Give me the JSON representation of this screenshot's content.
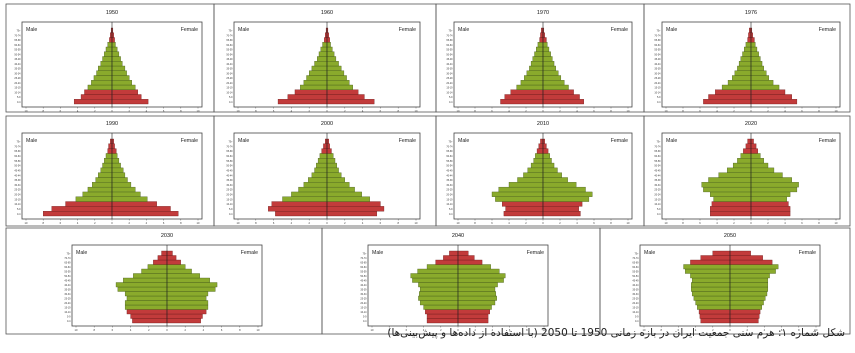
{
  "colors": {
    "young": "#c23b3b",
    "young_edge": "#6b1a1a",
    "mid": "#8aaa2c",
    "mid_edge": "#41561a",
    "old": "#c23b3b",
    "old_edge": "#6b1a1a",
    "panel_border": "#444444",
    "cell_border": "#555555"
  },
  "labels": {
    "male": "Male",
    "female": "Female"
  },
  "caption": "شکل شماره ۱: هرم سنی جمعیت ایران در بازه زمانی 1950 تا 2050 (با استفاده از داده‌ها و پیش‌بینی‌ها)",
  "chart_data": [
    {
      "type": "bar",
      "orientation": "horizontal",
      "title": "1950",
      "series": [
        {
          "name": "Male",
          "values": [
            4.4,
            3.6,
            3.2,
            2.8,
            2.4,
            2.1,
            1.8,
            1.6,
            1.3,
            1.1,
            0.9,
            0.7,
            0.5,
            0.3,
            0.2,
            0.1
          ]
        },
        {
          "name": "Female",
          "values": [
            4.2,
            3.4,
            3.0,
            2.7,
            2.3,
            2.0,
            1.7,
            1.5,
            1.2,
            1.0,
            0.8,
            0.6,
            0.4,
            0.3,
            0.2,
            0.1
          ]
        }
      ],
      "xlim": [
        -10,
        10
      ]
    },
    {
      "type": "bar",
      "orientation": "horizontal",
      "title": "1960",
      "series": [
        {
          "name": "Male",
          "values": [
            5.5,
            4.4,
            3.6,
            3.0,
            2.6,
            2.3,
            2.0,
            1.7,
            1.4,
            1.1,
            0.9,
            0.7,
            0.5,
            0.3,
            0.2,
            0.1
          ]
        },
        {
          "name": "Female",
          "values": [
            5.3,
            4.2,
            3.5,
            2.9,
            2.5,
            2.2,
            1.9,
            1.6,
            1.3,
            1.0,
            0.8,
            0.6,
            0.4,
            0.3,
            0.2,
            0.1
          ]
        }
      ],
      "xlim": [
        -10,
        10
      ]
    },
    {
      "type": "bar",
      "orientation": "horizontal",
      "title": "1970",
      "series": [
        {
          "name": "Male",
          "values": [
            5.0,
            4.5,
            3.8,
            3.1,
            2.6,
            2.2,
            1.9,
            1.6,
            1.4,
            1.2,
            1.0,
            0.8,
            0.6,
            0.4,
            0.3,
            0.2
          ]
        },
        {
          "name": "Female",
          "values": [
            4.8,
            4.3,
            3.6,
            3.0,
            2.5,
            2.1,
            1.8,
            1.5,
            1.3,
            1.1,
            0.9,
            0.7,
            0.5,
            0.4,
            0.2,
            0.1
          ]
        }
      ],
      "xlim": [
        -10,
        10
      ]
    },
    {
      "type": "bar",
      "orientation": "horizontal",
      "title": "1976",
      "series": [
        {
          "name": "Male",
          "values": [
            5.6,
            5.0,
            4.2,
            3.4,
            2.7,
            2.2,
            1.9,
            1.6,
            1.4,
            1.2,
            1.0,
            0.8,
            0.6,
            0.4,
            0.3,
            0.2
          ]
        },
        {
          "name": "Female",
          "values": [
            5.4,
            4.8,
            4.0,
            3.3,
            2.6,
            2.1,
            1.8,
            1.5,
            1.3,
            1.1,
            0.9,
            0.7,
            0.5,
            0.4,
            0.2,
            0.1
          ]
        }
      ],
      "xlim": [
        -10,
        10
      ]
    },
    {
      "type": "bar",
      "orientation": "horizontal",
      "title": "1990",
      "series": [
        {
          "name": "Male",
          "values": [
            8.0,
            7.0,
            5.4,
            4.2,
            3.4,
            2.8,
            2.3,
            1.9,
            1.6,
            1.3,
            1.1,
            0.9,
            0.7,
            0.5,
            0.4,
            0.2
          ]
        },
        {
          "name": "Female",
          "values": [
            7.7,
            6.8,
            5.2,
            4.1,
            3.3,
            2.7,
            2.2,
            1.8,
            1.5,
            1.3,
            1.0,
            0.8,
            0.6,
            0.5,
            0.3,
            0.2
          ]
        }
      ],
      "xlim": [
        -10,
        10
      ]
    },
    {
      "type": "bar",
      "orientation": "horizontal",
      "title": "2000",
      "series": [
        {
          "name": "Male",
          "values": [
            5.8,
            6.6,
            6.2,
            5.0,
            4.0,
            3.2,
            2.6,
            2.1,
            1.7,
            1.4,
            1.2,
            1.0,
            0.8,
            0.6,
            0.4,
            0.2
          ]
        },
        {
          "name": "Female",
          "values": [
            5.6,
            6.4,
            6.0,
            4.8,
            3.9,
            3.1,
            2.5,
            2.0,
            1.6,
            1.3,
            1.1,
            0.9,
            0.7,
            0.5,
            0.3,
            0.2
          ]
        }
      ],
      "xlim": [
        -10,
        10
      ]
    },
    {
      "type": "bar",
      "orientation": "horizontal",
      "title": "2010",
      "series": [
        {
          "name": "Male",
          "values": [
            4.6,
            4.4,
            4.8,
            5.6,
            6.0,
            5.2,
            4.0,
            3.0,
            2.3,
            1.8,
            1.4,
            1.1,
            0.9,
            0.7,
            0.5,
            0.3
          ]
        },
        {
          "name": "Female",
          "values": [
            4.4,
            4.2,
            4.6,
            5.4,
            5.8,
            5.0,
            3.9,
            2.9,
            2.2,
            1.7,
            1.3,
            1.0,
            0.8,
            0.6,
            0.4,
            0.2
          ]
        }
      ],
      "xlim": [
        -10,
        10
      ]
    },
    {
      "type": "bar",
      "orientation": "horizontal",
      "title": "2020",
      "series": [
        {
          "name": "Male",
          "values": [
            4.8,
            4.8,
            4.6,
            4.4,
            4.8,
            5.6,
            5.8,
            5.0,
            3.8,
            2.8,
            2.1,
            1.6,
            1.2,
            0.9,
            0.6,
            0.4
          ]
        },
        {
          "name": "Female",
          "values": [
            4.6,
            4.6,
            4.4,
            4.2,
            4.6,
            5.4,
            5.6,
            4.8,
            3.7,
            2.7,
            2.0,
            1.5,
            1.1,
            0.8,
            0.6,
            0.3
          ]
        }
      ],
      "xlim": [
        -10,
        10
      ]
    },
    {
      "type": "bar",
      "orientation": "horizontal",
      "title": "2030",
      "series": [
        {
          "name": "Male",
          "values": [
            3.8,
            4.0,
            4.4,
            4.6,
            4.6,
            4.4,
            4.6,
            5.4,
            5.6,
            4.8,
            3.7,
            2.8,
            2.1,
            1.5,
            1.0,
            0.6
          ]
        },
        {
          "name": "Female",
          "values": [
            3.7,
            3.9,
            4.3,
            4.5,
            4.5,
            4.3,
            4.5,
            5.3,
            5.5,
            4.7,
            3.6,
            2.7,
            2.0,
            1.5,
            1.0,
            0.6
          ]
        }
      ],
      "xlim": [
        -10,
        10
      ]
    },
    {
      "type": "bar",
      "orientation": "horizontal",
      "title": "2040",
      "series": [
        {
          "name": "Male",
          "values": [
            3.6,
            3.6,
            3.8,
            4.0,
            4.4,
            4.6,
            4.5,
            4.4,
            4.6,
            5.3,
            5.5,
            4.7,
            3.6,
            2.6,
            1.7,
            1.0
          ]
        },
        {
          "name": "Female",
          "values": [
            3.5,
            3.5,
            3.7,
            3.9,
            4.3,
            4.5,
            4.4,
            4.3,
            4.6,
            5.3,
            5.5,
            4.8,
            3.8,
            2.8,
            1.9,
            1.2
          ]
        }
      ],
      "xlim": [
        -10,
        10
      ]
    },
    {
      "type": "bar",
      "orientation": "horizontal",
      "title": "2050",
      "series": [
        {
          "name": "Male",
          "values": [
            3.4,
            3.5,
            3.6,
            3.8,
            4.0,
            4.2,
            4.4,
            4.5,
            4.5,
            4.4,
            4.6,
            5.2,
            5.4,
            4.6,
            3.4,
            2.0
          ]
        },
        {
          "name": "Female",
          "values": [
            3.3,
            3.4,
            3.5,
            3.7,
            3.9,
            4.1,
            4.3,
            4.4,
            4.4,
            4.4,
            4.6,
            5.3,
            5.6,
            4.9,
            3.8,
            2.4
          ]
        }
      ],
      "xlim": [
        -10,
        10
      ]
    }
  ]
}
